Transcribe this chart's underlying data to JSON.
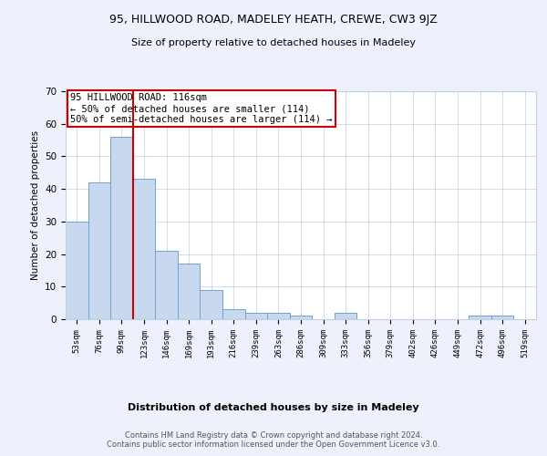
{
  "title1": "95, HILLWOOD ROAD, MADELEY HEATH, CREWE, CW3 9JZ",
  "title2": "Size of property relative to detached houses in Madeley",
  "xlabel": "Distribution of detached houses by size in Madeley",
  "ylabel": "Number of detached properties",
  "bins": [
    "53sqm",
    "76sqm",
    "99sqm",
    "123sqm",
    "146sqm",
    "169sqm",
    "193sqm",
    "216sqm",
    "239sqm",
    "263sqm",
    "286sqm",
    "309sqm",
    "333sqm",
    "356sqm",
    "379sqm",
    "402sqm",
    "426sqm",
    "449sqm",
    "472sqm",
    "496sqm",
    "519sqm"
  ],
  "values": [
    30,
    42,
    56,
    43,
    21,
    17,
    9,
    3,
    2,
    2,
    1,
    0,
    2,
    0,
    0,
    0,
    0,
    0,
    1,
    1,
    0
  ],
  "bar_color": "#c8d8ee",
  "bar_edge_color": "#6ba3d0",
  "vline_x_index": 2.5,
  "vline_color": "#cc0000",
  "annotation_text": "95 HILLWOOD ROAD: 116sqm\n← 50% of detached houses are smaller (114)\n50% of semi-detached houses are larger (114) →",
  "annotation_box_color": "white",
  "annotation_box_edge_color": "#cc0000",
  "ylim": [
    0,
    70
  ],
  "yticks": [
    0,
    10,
    20,
    30,
    40,
    50,
    60,
    70
  ],
  "footnote": "Contains HM Land Registry data © Crown copyright and database right 2024.\nContains public sector information licensed under the Open Government Licence v3.0.",
  "background_color": "#eef1fb",
  "plot_bg_color": "#ffffff",
  "grid_color": "#c0cfe0",
  "title1_fontsize": 9,
  "title2_fontsize": 8,
  "xlabel_fontsize": 8,
  "ylabel_fontsize": 7.5,
  "ytick_fontsize": 7.5,
  "xtick_fontsize": 6.5,
  "annot_fontsize": 7.5,
  "footnote_fontsize": 6,
  "footnote_color": "#555555"
}
